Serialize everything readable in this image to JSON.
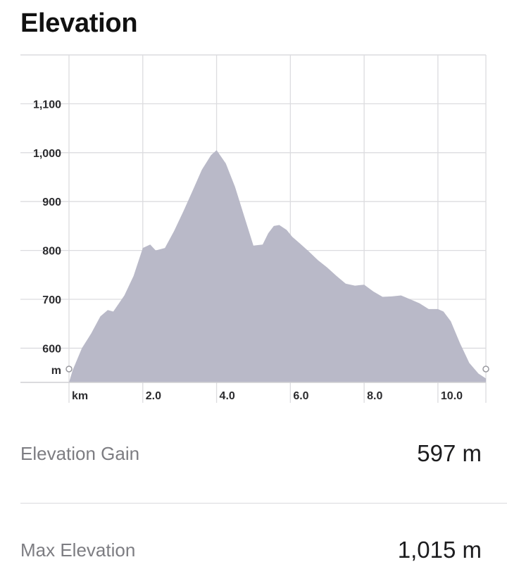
{
  "header": {
    "title": "Elevation"
  },
  "chart_data": {
    "type": "area",
    "title": "",
    "xlabel": "",
    "ylabel": "",
    "y_unit": "m",
    "x_unit": "km",
    "y_ticks": [
      600,
      700,
      800,
      900,
      1000,
      1100
    ],
    "y_tick_labels": [
      "600",
      "700",
      "800",
      "900",
      "1,000",
      "1,100"
    ],
    "x_ticks": [
      2,
      4,
      6,
      8,
      10
    ],
    "x_tick_labels": [
      "2.0",
      "4.0",
      "6.0",
      "8.0",
      "10.0"
    ],
    "xlim": [
      0,
      11.3
    ],
    "ylim": [
      530,
      1200
    ],
    "grid": true,
    "fill_color": "#b9b9c8",
    "grid_color": "#dcdcdf",
    "x": [
      0.0,
      0.1,
      0.35,
      0.6,
      0.85,
      1.05,
      1.2,
      1.5,
      1.75,
      2.0,
      2.2,
      2.35,
      2.6,
      2.85,
      3.1,
      3.35,
      3.6,
      3.85,
      4.0,
      4.25,
      4.5,
      4.75,
      5.0,
      5.25,
      5.4,
      5.55,
      5.7,
      5.9,
      6.05,
      6.25,
      6.5,
      6.75,
      7.0,
      7.25,
      7.5,
      7.75,
      8.0,
      8.25,
      8.5,
      8.75,
      9.0,
      9.25,
      9.5,
      9.75,
      10.0,
      10.15,
      10.35,
      10.6,
      10.85,
      11.1,
      11.3
    ],
    "y": [
      530,
      555,
      600,
      630,
      665,
      678,
      675,
      708,
      748,
      805,
      812,
      800,
      805,
      840,
      880,
      922,
      965,
      995,
      1005,
      978,
      930,
      870,
      810,
      812,
      835,
      850,
      852,
      842,
      828,
      815,
      798,
      780,
      765,
      748,
      732,
      728,
      730,
      716,
      705,
      706,
      708,
      700,
      692,
      680,
      680,
      675,
      655,
      610,
      570,
      548,
      538
    ],
    "stats": [
      {
        "label": "Elevation Gain",
        "value": "597 m"
      },
      {
        "label": "Max Elevation",
        "value": "1,015 m"
      }
    ]
  }
}
